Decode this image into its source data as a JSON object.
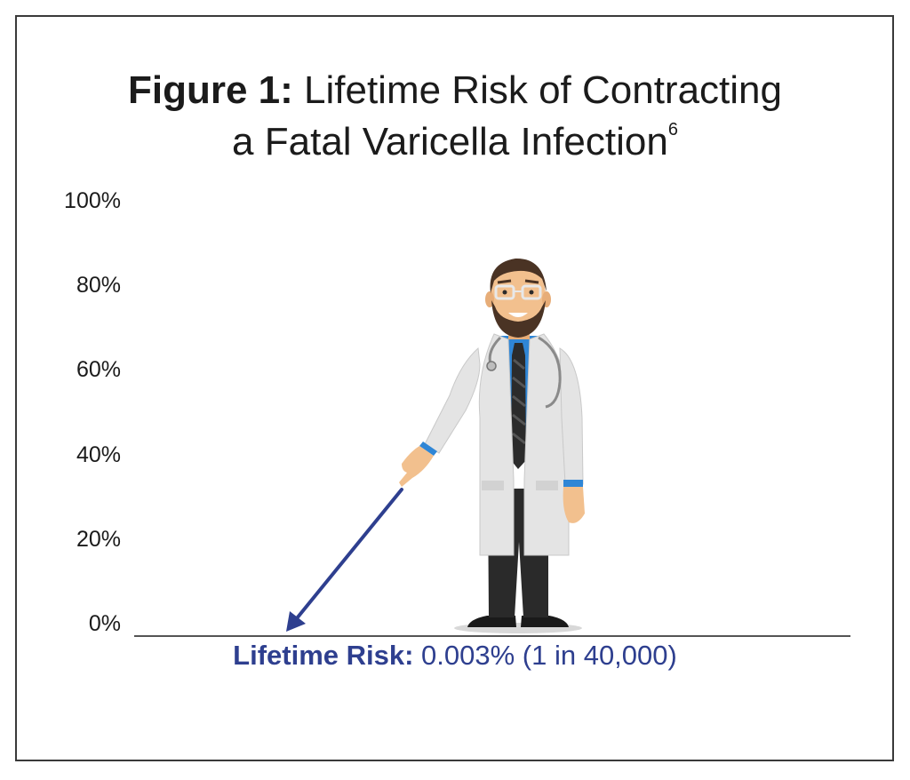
{
  "title": {
    "bold": "Figure 1:",
    "line1_rest": " Lifetime Risk of Contracting",
    "line2": "a Fatal Varicella Infection",
    "superscript": "6"
  },
  "colors": {
    "accent": "#2e3f8f",
    "axis": "#1b1b1b",
    "coat": "#e4e4e4",
    "shirt": "#2f86d6"
  },
  "annotation": {
    "label": "Lifetime Risk:",
    "value": " 0.003% (1 in 40,000)"
  },
  "illustration": {
    "icon": "doctor-pointing-icon"
  },
  "chart_data": {
    "type": "bar",
    "categories": [
      ""
    ],
    "values": [
      0.003
    ],
    "title": "Figure 1: Lifetime Risk of Contracting a Fatal Varicella Infection",
    "xlabel": "",
    "ylabel": "",
    "ylim": [
      0,
      100
    ],
    "yticks": [
      "0%",
      "20%",
      "40%",
      "60%",
      "80%",
      "100%"
    ],
    "grid": false,
    "annotations": [
      "Lifetime Risk: 0.003% (1 in 40,000)"
    ]
  }
}
